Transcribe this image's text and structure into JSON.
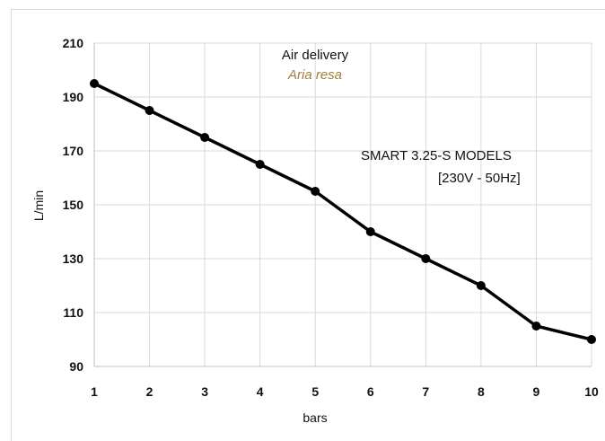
{
  "chart_data": {
    "type": "line",
    "title": "Air delivery",
    "subtitle": "Aria resa",
    "subtitle_color": "#a08040",
    "annotation": [
      "SMART 3.25-S MODELS",
      "[230V - 50Hz]"
    ],
    "xlabel": "bars",
    "ylabel": "L/min",
    "x": [
      1,
      2,
      3,
      4,
      5,
      6,
      7,
      8,
      9,
      10
    ],
    "series": [
      {
        "values": [
          195,
          185,
          175,
          165,
          155,
          140,
          130,
          120,
          105,
          100
        ]
      }
    ],
    "xlim": [
      1,
      10
    ],
    "ylim": [
      90,
      210
    ],
    "yticks": [
      90,
      110,
      130,
      150,
      170,
      190,
      210
    ],
    "xticks": [
      1,
      2,
      3,
      4,
      5,
      6,
      7,
      8,
      9,
      10
    ],
    "grid": true,
    "line_color": "#000000",
    "grid_color": "#d9d9d9"
  }
}
